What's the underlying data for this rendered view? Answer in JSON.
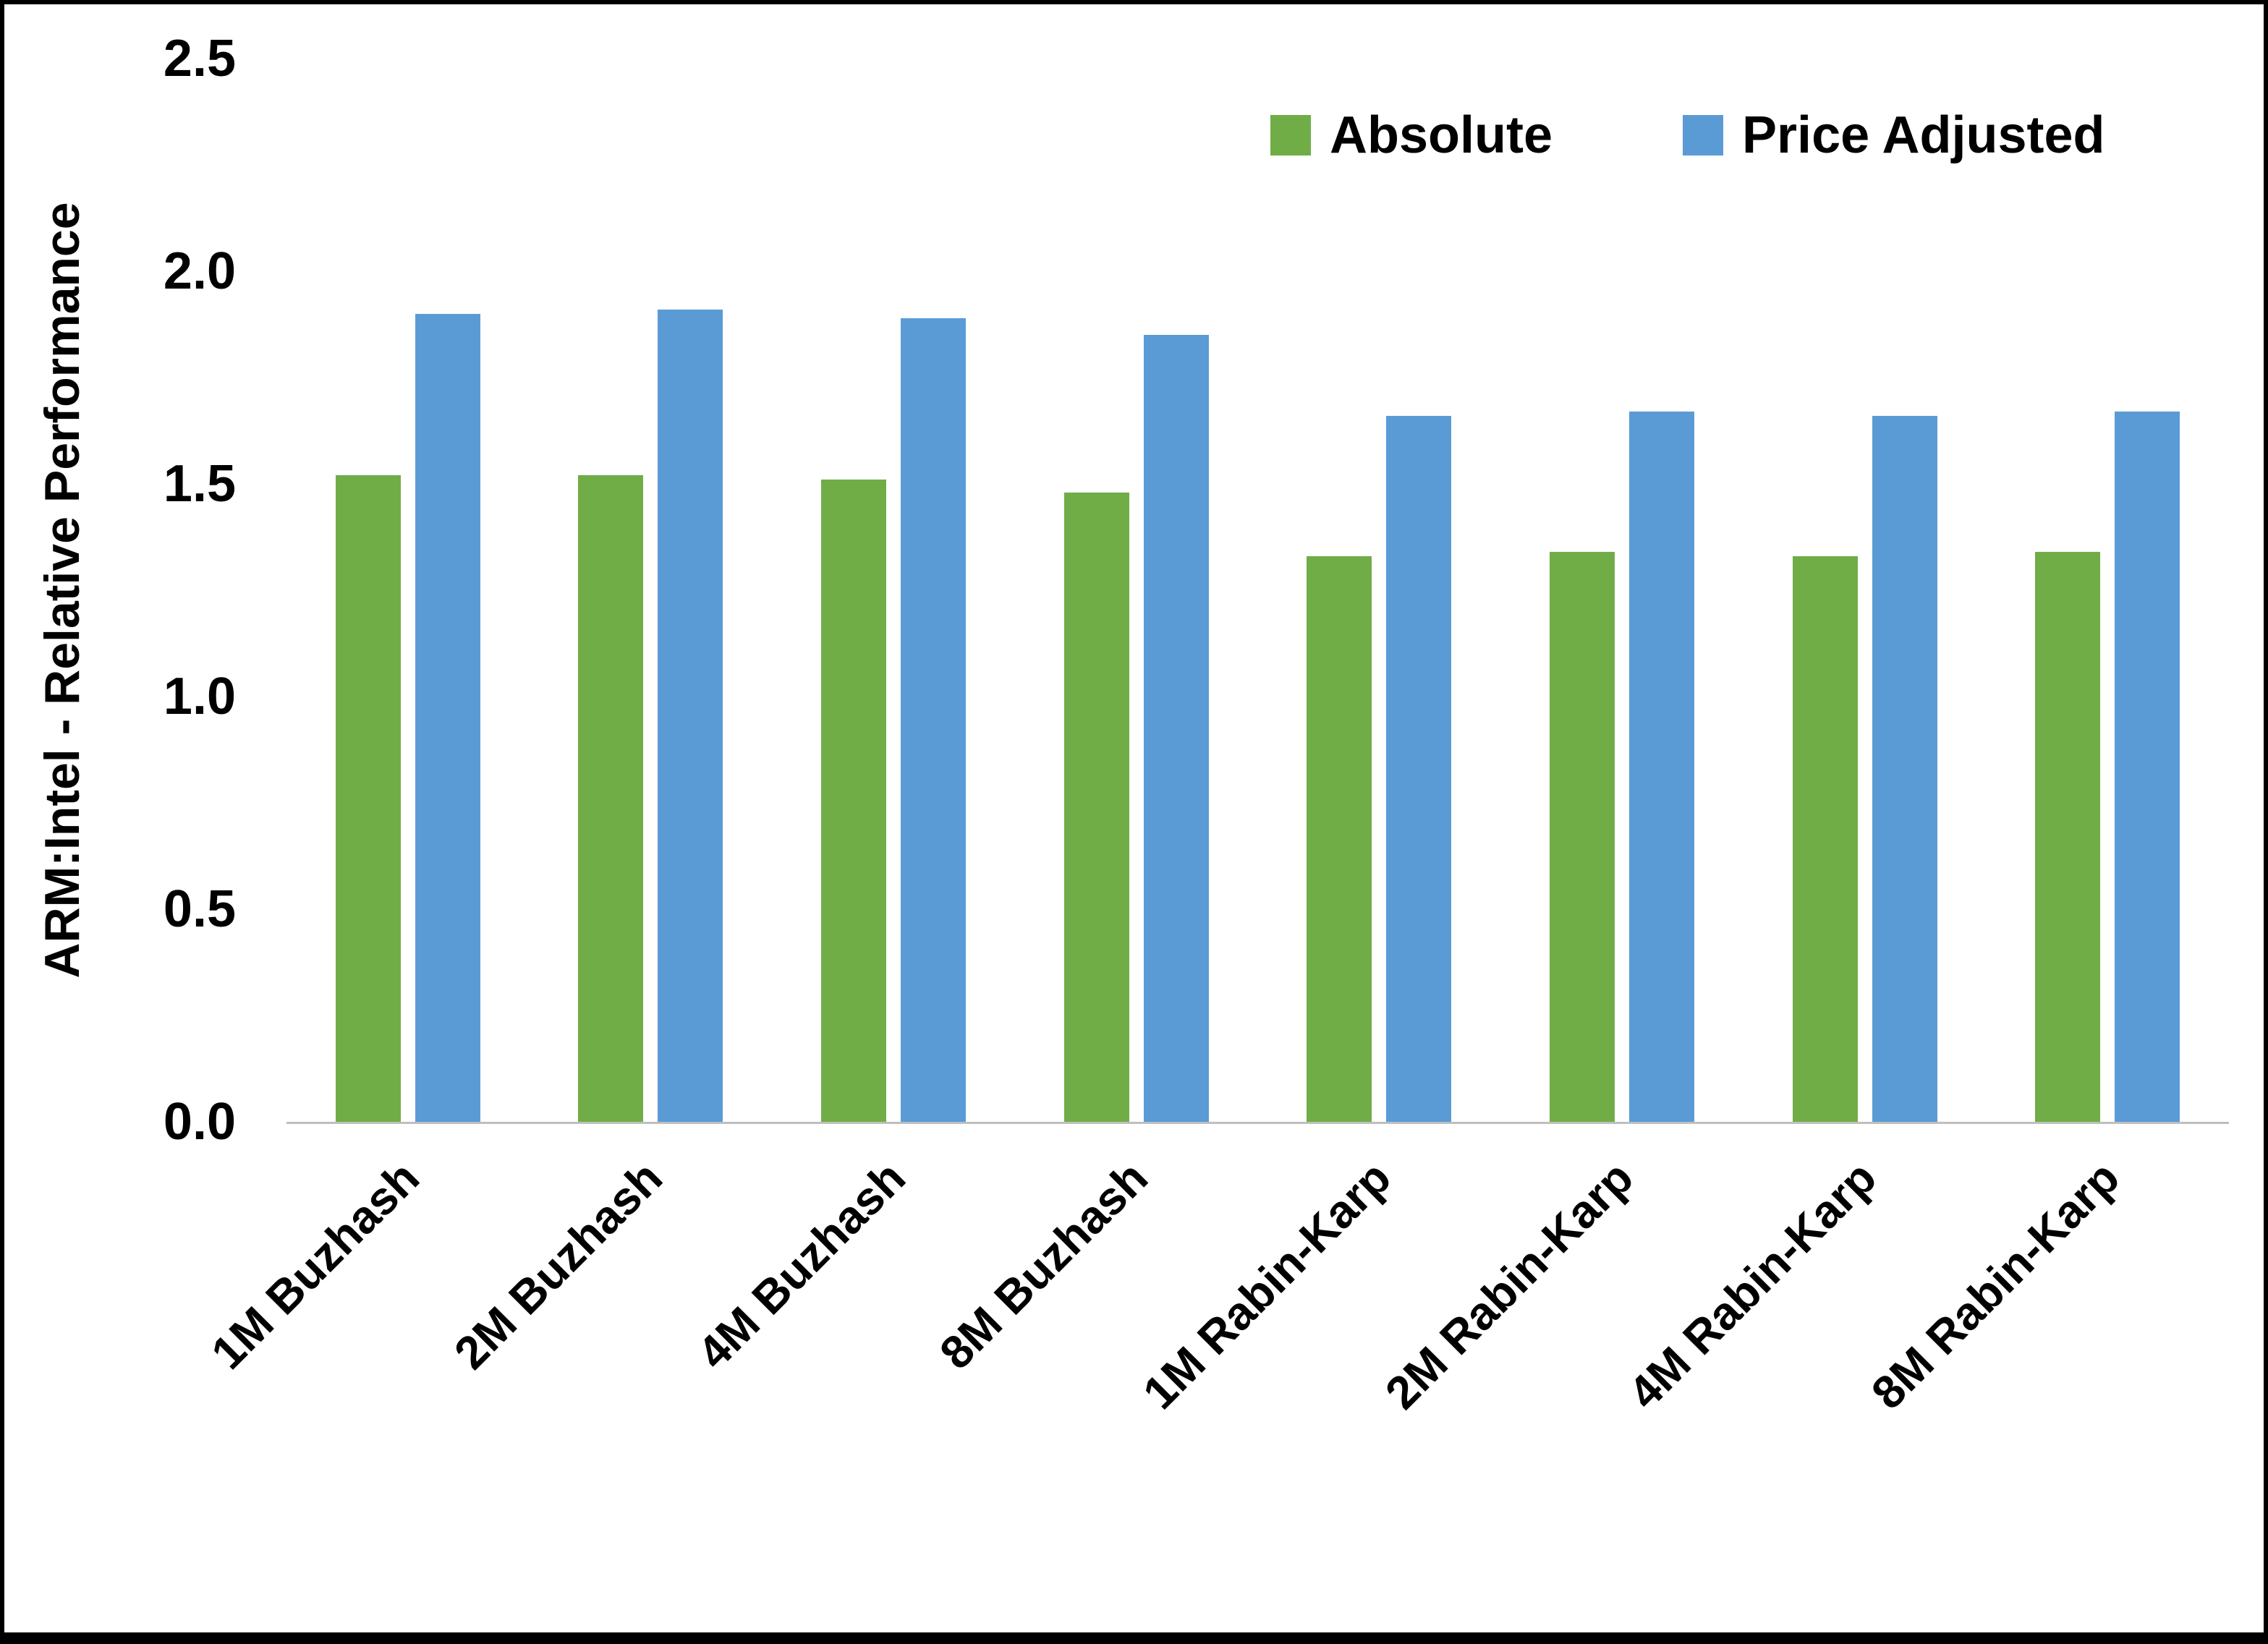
{
  "chart_data": {
    "type": "bar",
    "title": "",
    "categories": [
      "1M Buzhash",
      "2M Buzhash",
      "4M Buzhash",
      "8M Buzhash",
      "1M Rabin-Karp",
      "2M Rabin-Karp",
      "4M Rabin-Karp",
      "8M Rabin-Karp"
    ],
    "series": [
      {
        "name": "Absolute",
        "color": "#70AD47",
        "values": [
          1.52,
          1.52,
          1.51,
          1.48,
          1.33,
          1.34,
          1.33,
          1.34
        ]
      },
      {
        "name": "Price Adjusted",
        "color": "#5B9BD5",
        "values": [
          1.9,
          1.91,
          1.89,
          1.85,
          1.66,
          1.67,
          1.66,
          1.67
        ]
      }
    ],
    "xlabel": "",
    "ylabel": "ARM:Intel - Relative Performance",
    "ylim": [
      0,
      2.5
    ],
    "yticks": [
      0.0,
      0.5,
      1.0,
      1.5,
      2.0,
      2.5
    ],
    "ytick_labels": [
      "0.0",
      "0.5",
      "1.0",
      "1.5",
      "2.0",
      "2.5"
    ],
    "grid": false,
    "legend_position": "top-right"
  },
  "legend": {
    "items": [
      {
        "label": "Absolute",
        "color": "#70AD47"
      },
      {
        "label": "Price Adjusted",
        "color": "#5B9BD5"
      }
    ]
  },
  "axis": {
    "baseline_color": "#BFBFBF"
  }
}
